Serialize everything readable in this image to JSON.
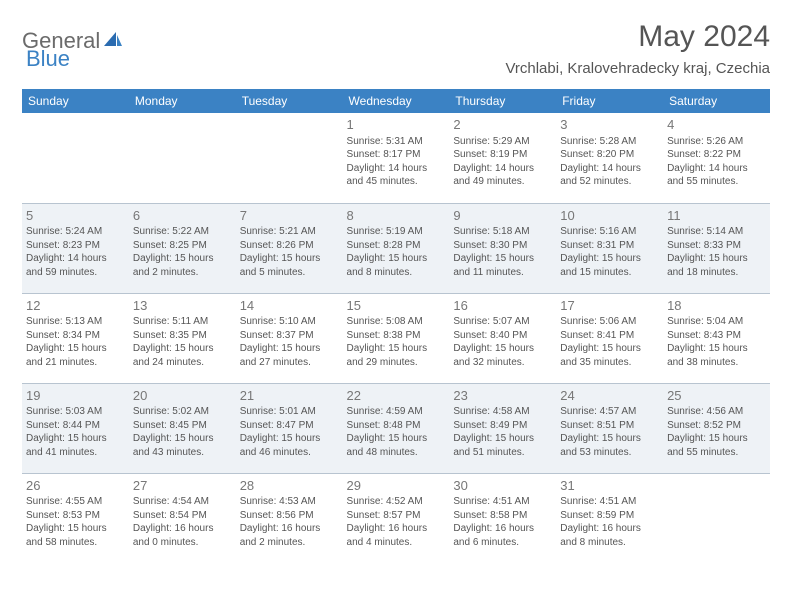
{
  "brand": {
    "part1": "General",
    "part2": "Blue"
  },
  "title": "May 2024",
  "subtitle": "Vrchlabi, Kralovehradecky kraj, Czechia",
  "day_headers": [
    "Sunday",
    "Monday",
    "Tuesday",
    "Wednesday",
    "Thursday",
    "Friday",
    "Saturday"
  ],
  "colors": {
    "header_bg": "#3b82c4",
    "header_fg": "#ffffff",
    "alt_row_bg": "#eef2f6",
    "border": "#b8c4d0",
    "text": "#555555",
    "logo_gray": "#6b6b6b",
    "logo_blue": "#3b82c4"
  },
  "weeks": [
    {
      "alt": false,
      "days": [
        {
          "num": "",
          "sunrise": "",
          "sunset": "",
          "daylight": ""
        },
        {
          "num": "",
          "sunrise": "",
          "sunset": "",
          "daylight": ""
        },
        {
          "num": "",
          "sunrise": "",
          "sunset": "",
          "daylight": ""
        },
        {
          "num": "1",
          "sunrise": "Sunrise: 5:31 AM",
          "sunset": "Sunset: 8:17 PM",
          "daylight": "Daylight: 14 hours and 45 minutes."
        },
        {
          "num": "2",
          "sunrise": "Sunrise: 5:29 AM",
          "sunset": "Sunset: 8:19 PM",
          "daylight": "Daylight: 14 hours and 49 minutes."
        },
        {
          "num": "3",
          "sunrise": "Sunrise: 5:28 AM",
          "sunset": "Sunset: 8:20 PM",
          "daylight": "Daylight: 14 hours and 52 minutes."
        },
        {
          "num": "4",
          "sunrise": "Sunrise: 5:26 AM",
          "sunset": "Sunset: 8:22 PM",
          "daylight": "Daylight: 14 hours and 55 minutes."
        }
      ]
    },
    {
      "alt": true,
      "days": [
        {
          "num": "5",
          "sunrise": "Sunrise: 5:24 AM",
          "sunset": "Sunset: 8:23 PM",
          "daylight": "Daylight: 14 hours and 59 minutes."
        },
        {
          "num": "6",
          "sunrise": "Sunrise: 5:22 AM",
          "sunset": "Sunset: 8:25 PM",
          "daylight": "Daylight: 15 hours and 2 minutes."
        },
        {
          "num": "7",
          "sunrise": "Sunrise: 5:21 AM",
          "sunset": "Sunset: 8:26 PM",
          "daylight": "Daylight: 15 hours and 5 minutes."
        },
        {
          "num": "8",
          "sunrise": "Sunrise: 5:19 AM",
          "sunset": "Sunset: 8:28 PM",
          "daylight": "Daylight: 15 hours and 8 minutes."
        },
        {
          "num": "9",
          "sunrise": "Sunrise: 5:18 AM",
          "sunset": "Sunset: 8:30 PM",
          "daylight": "Daylight: 15 hours and 11 minutes."
        },
        {
          "num": "10",
          "sunrise": "Sunrise: 5:16 AM",
          "sunset": "Sunset: 8:31 PM",
          "daylight": "Daylight: 15 hours and 15 minutes."
        },
        {
          "num": "11",
          "sunrise": "Sunrise: 5:14 AM",
          "sunset": "Sunset: 8:33 PM",
          "daylight": "Daylight: 15 hours and 18 minutes."
        }
      ]
    },
    {
      "alt": false,
      "days": [
        {
          "num": "12",
          "sunrise": "Sunrise: 5:13 AM",
          "sunset": "Sunset: 8:34 PM",
          "daylight": "Daylight: 15 hours and 21 minutes."
        },
        {
          "num": "13",
          "sunrise": "Sunrise: 5:11 AM",
          "sunset": "Sunset: 8:35 PM",
          "daylight": "Daylight: 15 hours and 24 minutes."
        },
        {
          "num": "14",
          "sunrise": "Sunrise: 5:10 AM",
          "sunset": "Sunset: 8:37 PM",
          "daylight": "Daylight: 15 hours and 27 minutes."
        },
        {
          "num": "15",
          "sunrise": "Sunrise: 5:08 AM",
          "sunset": "Sunset: 8:38 PM",
          "daylight": "Daylight: 15 hours and 29 minutes."
        },
        {
          "num": "16",
          "sunrise": "Sunrise: 5:07 AM",
          "sunset": "Sunset: 8:40 PM",
          "daylight": "Daylight: 15 hours and 32 minutes."
        },
        {
          "num": "17",
          "sunrise": "Sunrise: 5:06 AM",
          "sunset": "Sunset: 8:41 PM",
          "daylight": "Daylight: 15 hours and 35 minutes."
        },
        {
          "num": "18",
          "sunrise": "Sunrise: 5:04 AM",
          "sunset": "Sunset: 8:43 PM",
          "daylight": "Daylight: 15 hours and 38 minutes."
        }
      ]
    },
    {
      "alt": true,
      "days": [
        {
          "num": "19",
          "sunrise": "Sunrise: 5:03 AM",
          "sunset": "Sunset: 8:44 PM",
          "daylight": "Daylight: 15 hours and 41 minutes."
        },
        {
          "num": "20",
          "sunrise": "Sunrise: 5:02 AM",
          "sunset": "Sunset: 8:45 PM",
          "daylight": "Daylight: 15 hours and 43 minutes."
        },
        {
          "num": "21",
          "sunrise": "Sunrise: 5:01 AM",
          "sunset": "Sunset: 8:47 PM",
          "daylight": "Daylight: 15 hours and 46 minutes."
        },
        {
          "num": "22",
          "sunrise": "Sunrise: 4:59 AM",
          "sunset": "Sunset: 8:48 PM",
          "daylight": "Daylight: 15 hours and 48 minutes."
        },
        {
          "num": "23",
          "sunrise": "Sunrise: 4:58 AM",
          "sunset": "Sunset: 8:49 PM",
          "daylight": "Daylight: 15 hours and 51 minutes."
        },
        {
          "num": "24",
          "sunrise": "Sunrise: 4:57 AM",
          "sunset": "Sunset: 8:51 PM",
          "daylight": "Daylight: 15 hours and 53 minutes."
        },
        {
          "num": "25",
          "sunrise": "Sunrise: 4:56 AM",
          "sunset": "Sunset: 8:52 PM",
          "daylight": "Daylight: 15 hours and 55 minutes."
        }
      ]
    },
    {
      "alt": false,
      "days": [
        {
          "num": "26",
          "sunrise": "Sunrise: 4:55 AM",
          "sunset": "Sunset: 8:53 PM",
          "daylight": "Daylight: 15 hours and 58 minutes."
        },
        {
          "num": "27",
          "sunrise": "Sunrise: 4:54 AM",
          "sunset": "Sunset: 8:54 PM",
          "daylight": "Daylight: 16 hours and 0 minutes."
        },
        {
          "num": "28",
          "sunrise": "Sunrise: 4:53 AM",
          "sunset": "Sunset: 8:56 PM",
          "daylight": "Daylight: 16 hours and 2 minutes."
        },
        {
          "num": "29",
          "sunrise": "Sunrise: 4:52 AM",
          "sunset": "Sunset: 8:57 PM",
          "daylight": "Daylight: 16 hours and 4 minutes."
        },
        {
          "num": "30",
          "sunrise": "Sunrise: 4:51 AM",
          "sunset": "Sunset: 8:58 PM",
          "daylight": "Daylight: 16 hours and 6 minutes."
        },
        {
          "num": "31",
          "sunrise": "Sunrise: 4:51 AM",
          "sunset": "Sunset: 8:59 PM",
          "daylight": "Daylight: 16 hours and 8 minutes."
        },
        {
          "num": "",
          "sunrise": "",
          "sunset": "",
          "daylight": ""
        }
      ]
    }
  ]
}
